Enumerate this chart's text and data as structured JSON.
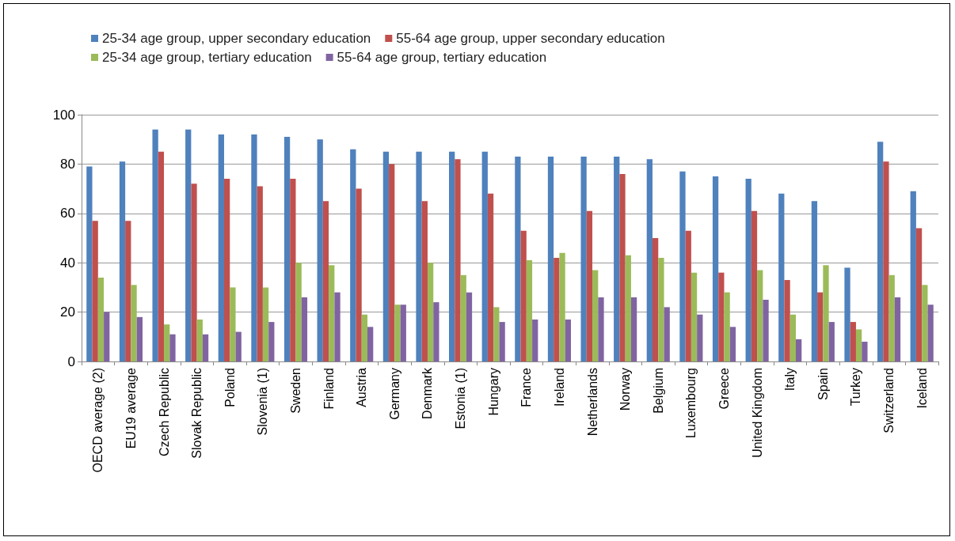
{
  "chart_data": {
    "type": "bar",
    "categories": [
      "OECD average (2)",
      "EU19 average",
      "Czech Republic",
      "Slovak Republic",
      "Poland",
      "Slovenia (1)",
      "Sweden",
      "Finland",
      "Austria",
      "Germany",
      "Denmark",
      "Estonia (1)",
      "Hungary",
      "France",
      "Ireland",
      "Netherlands",
      "Norway",
      "Belgium",
      "Luxembourg",
      "Greece",
      "United Kingdom",
      "Italy",
      "Spain",
      "Turkey",
      "Switzerland",
      "Iceland"
    ],
    "series": [
      {
        "name": "25-34 age group, upper secondary education",
        "color": "#4f81bd",
        "values": [
          79,
          81,
          94,
          94,
          92,
          92,
          91,
          90,
          86,
          85,
          85,
          85,
          85,
          83,
          83,
          83,
          83,
          82,
          77,
          75,
          74,
          68,
          65,
          38,
          89,
          69
        ]
      },
      {
        "name": "55-64 age group, upper secondary education",
        "color": "#c0504d",
        "values": [
          57,
          57,
          85,
          72,
          74,
          71,
          74,
          65,
          70,
          80,
          65,
          82,
          68,
          53,
          42,
          61,
          76,
          50,
          53,
          36,
          61,
          33,
          28,
          16,
          81,
          54
        ]
      },
      {
        "name": "25-34 age group, tertiary education",
        "color": "#9bbb59",
        "values": [
          34,
          31,
          15,
          17,
          30,
          30,
          40,
          39,
          19,
          23,
          40,
          35,
          22,
          41,
          44,
          37,
          43,
          42,
          36,
          28,
          37,
          19,
          39,
          13,
          35,
          31
        ]
      },
      {
        "name": "55-64 age group, tertiary education",
        "color": "#8064a2",
        "values": [
          20,
          18,
          11,
          11,
          12,
          16,
          26,
          28,
          14,
          23,
          24,
          28,
          16,
          17,
          17,
          26,
          26,
          22,
          19,
          14,
          25,
          9,
          16,
          8,
          26,
          23
        ]
      }
    ],
    "ylim": [
      0,
      100
    ],
    "yticks": [
      0,
      20,
      40,
      60,
      80,
      100
    ],
    "grid": "y",
    "legend": "top"
  }
}
